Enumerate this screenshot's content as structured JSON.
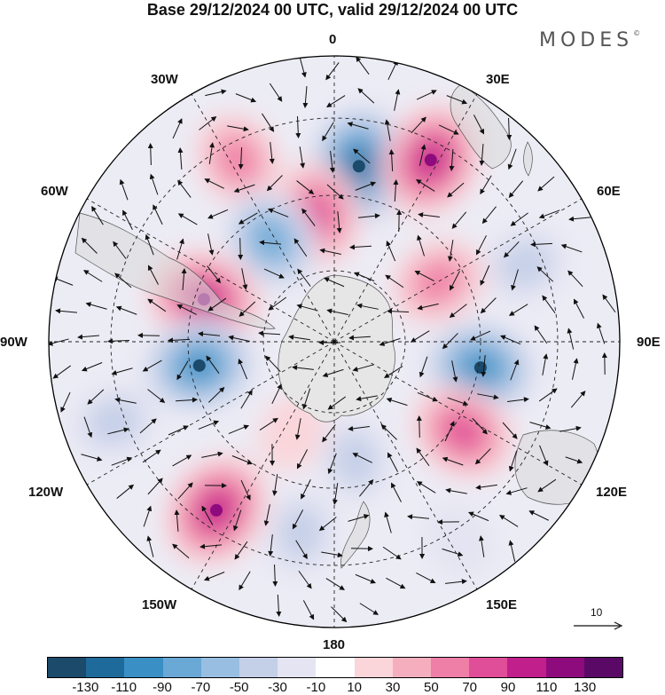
{
  "title": "Base 29/12/2024 00 UTC, valid 29/12/2024 00 UTC",
  "brand": "MODES",
  "brand_mark": "©",
  "longitude_labels": {
    "lon0": "0",
    "lon30e": "30E",
    "lon60e": "60E",
    "lon90e": "90E",
    "lon120e": "120E",
    "lon150e": "150E",
    "lon180": "180",
    "lon150w": "150W",
    "lon120w": "120W",
    "lon90w": "90W",
    "lon60w": "60W",
    "lon30w": "30W"
  },
  "reference_vector": {
    "label": "10"
  },
  "colorbar": {
    "colors": [
      "#1b4a6b",
      "#1e6a9b",
      "#3a8fc4",
      "#6aa8d6",
      "#98bfe2",
      "#c4cfe8",
      "#e4e4f2",
      "#ffffff",
      "#fad5da",
      "#f5aebe",
      "#ef7fa6",
      "#e04d98",
      "#c01f8c",
      "#8e0b7e",
      "#5a0a66"
    ],
    "labels": [
      "-130",
      "-110",
      "-90",
      "-70",
      "-50",
      "-30",
      "-10",
      "10",
      "30",
      "50",
      "70",
      "90",
      "110",
      "130"
    ]
  },
  "map_data": {
    "projection": "south-polar-stereographic",
    "field": "geopotential-anomaly",
    "anomaly_centers": [
      {
        "lon": 8,
        "lat_ring": 0.62,
        "value": -130
      },
      {
        "lon": 28,
        "lat_ring": 0.72,
        "value": 110
      },
      {
        "lon": -28,
        "lat_ring": 0.72,
        "value": 70
      },
      {
        "lon": -8,
        "lat_ring": 0.45,
        "value": 90
      },
      {
        "lon": -32,
        "lat_ring": 0.42,
        "value": -90
      },
      {
        "lon": 68,
        "lat_ring": 0.72,
        "value": -50
      },
      {
        "lon": 60,
        "lat_ring": 0.42,
        "value": 70
      },
      {
        "lon": -72,
        "lat_ring": 0.48,
        "value": 110
      },
      {
        "lon": 100,
        "lat_ring": 0.52,
        "value": -110
      },
      {
        "lon": -100,
        "lat_ring": 0.48,
        "value": -110
      },
      {
        "lon": 125,
        "lat_ring": 0.55,
        "value": 90
      },
      {
        "lon": -145,
        "lat_ring": 0.72,
        "value": 110
      },
      {
        "lon": -110,
        "lat_ring": 0.82,
        "value": -50
      },
      {
        "lon": 170,
        "lat_ring": 0.42,
        "value": -50
      },
      {
        "lon": -170,
        "lat_ring": 0.68,
        "value": -50
      },
      {
        "lon": 148,
        "lat_ring": 0.82,
        "value": -30
      },
      {
        "lon": -155,
        "lat_ring": 0.35,
        "value": 30
      }
    ]
  }
}
